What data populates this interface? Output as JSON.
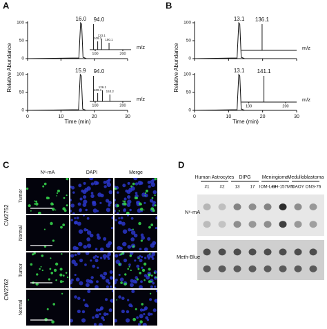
{
  "panel_a": {
    "label": "A",
    "y_axis_label": "Relative Abundance",
    "x_axis_label": "Time (min)",
    "x_ticks": [
      "0",
      "10",
      "20",
      "30"
    ],
    "traces": [
      {
        "y_ticks": [
          "0",
          "50",
          "100"
        ],
        "peak_label": "16.0",
        "spectrum": {
          "base_peak_label": "94.0",
          "minor_peak_labels": [
            "109.1",
            "123.1",
            "150.1"
          ],
          "x_ticks": [
            "100",
            "200"
          ],
          "x_axis_label": "m/z"
        }
      },
      {
        "y_ticks": [
          "0",
          "50",
          "100"
        ],
        "peak_label": "15.9",
        "spectrum": {
          "base_peak_label": "94.0",
          "minor_peak_labels": [
            "109.1",
            "126.1",
            "153.2"
          ],
          "x_ticks": [
            "100",
            "200"
          ],
          "x_axis_label": "m/z"
        }
      }
    ]
  },
  "panel_b": {
    "label": "B",
    "y_axis_label": "Relative Abundance",
    "x_axis_label": "Time (min)",
    "x_ticks": [
      "0",
      "10",
      "20",
      "30"
    ],
    "traces": [
      {
        "y_ticks": [
          "0",
          "50",
          "100"
        ],
        "peak_label": "13.1",
        "spectrum": {
          "base_peak_label": "136.1",
          "minor_peak_labels": [],
          "x_ticks": [],
          "x_axis_label": "m/z"
        }
      },
      {
        "y_ticks": [
          "0",
          "50",
          "100"
        ],
        "peak_label": "13.1",
        "spectrum": {
          "base_peak_label": "141.1",
          "minor_peak_labels": [],
          "x_ticks": [
            "100",
            "200"
          ],
          "x_axis_label": "m/z"
        }
      }
    ]
  },
  "panel_c": {
    "label": "C",
    "columns": [
      "N⁶-mA",
      "DAPI",
      "Merge"
    ],
    "groups": [
      {
        "name": "CW2752",
        "rows": [
          "Tumor",
          "Normal"
        ]
      },
      {
        "name": "CW2762",
        "rows": [
          "Tumor",
          "Normal"
        ]
      }
    ]
  },
  "panel_d": {
    "label": "D",
    "groups": [
      {
        "name": "Human Astrocytes",
        "lanes": [
          "#1",
          "#2"
        ]
      },
      {
        "name": "DIPG",
        "lanes": [
          "13",
          "17"
        ]
      },
      {
        "name": "Meningioma",
        "lanes": [
          "IOM-Lee",
          "CH-157MN"
        ]
      },
      {
        "name": "Medulloblastoma",
        "lanes": [
          "DAOY",
          "ONS-76"
        ]
      }
    ],
    "rows": [
      "N⁶-mA",
      "Meth-Blue"
    ]
  }
}
